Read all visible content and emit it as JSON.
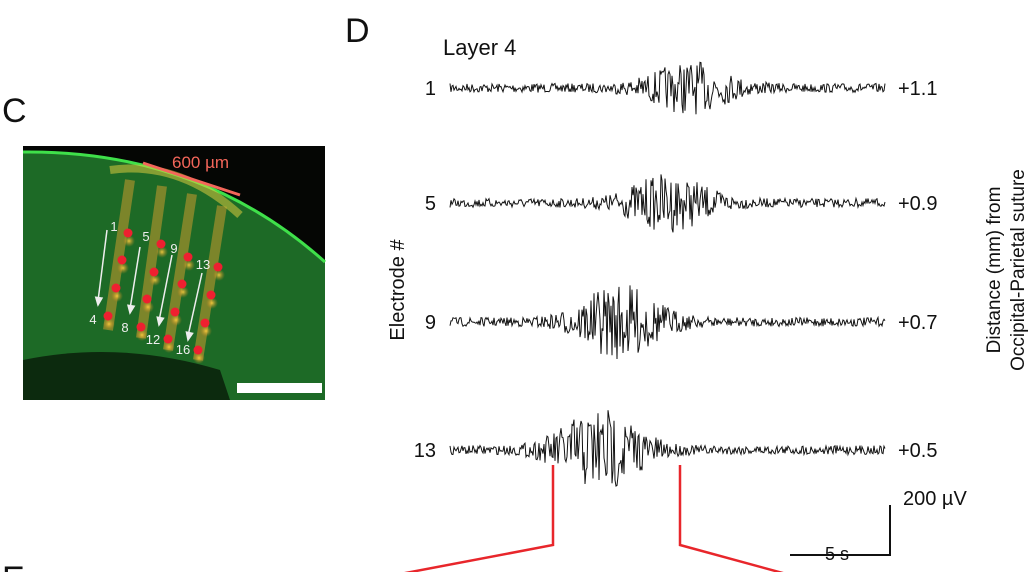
{
  "panel_c": {
    "label": "C",
    "scale_label": "600 µm",
    "electrode_labels": [
      "1",
      "5",
      "9",
      "13",
      "4",
      "8",
      "12",
      "16"
    ]
  },
  "panel_d": {
    "label": "D",
    "title": "Layer 4",
    "left_axis_label": "Electrode #",
    "right_axis_label_line1": "Distance (mm) from",
    "right_axis_label_line2": "Occipital-Parietal suture",
    "traces": [
      {
        "electrode": "1",
        "distance": "+1.1"
      },
      {
        "electrode": "5",
        "distance": "+0.9"
      },
      {
        "electrode": "9",
        "distance": "+0.7"
      },
      {
        "electrode": "13",
        "distance": "+0.5"
      }
    ],
    "scale_bar_voltage": "200 µV",
    "scale_bar_time": "5 s"
  },
  "panel_e": {
    "label": "E"
  },
  "colors": {
    "highlight": "#e8262b",
    "scale_text": "#f4665a",
    "electrode_dot": "#ee2030"
  }
}
